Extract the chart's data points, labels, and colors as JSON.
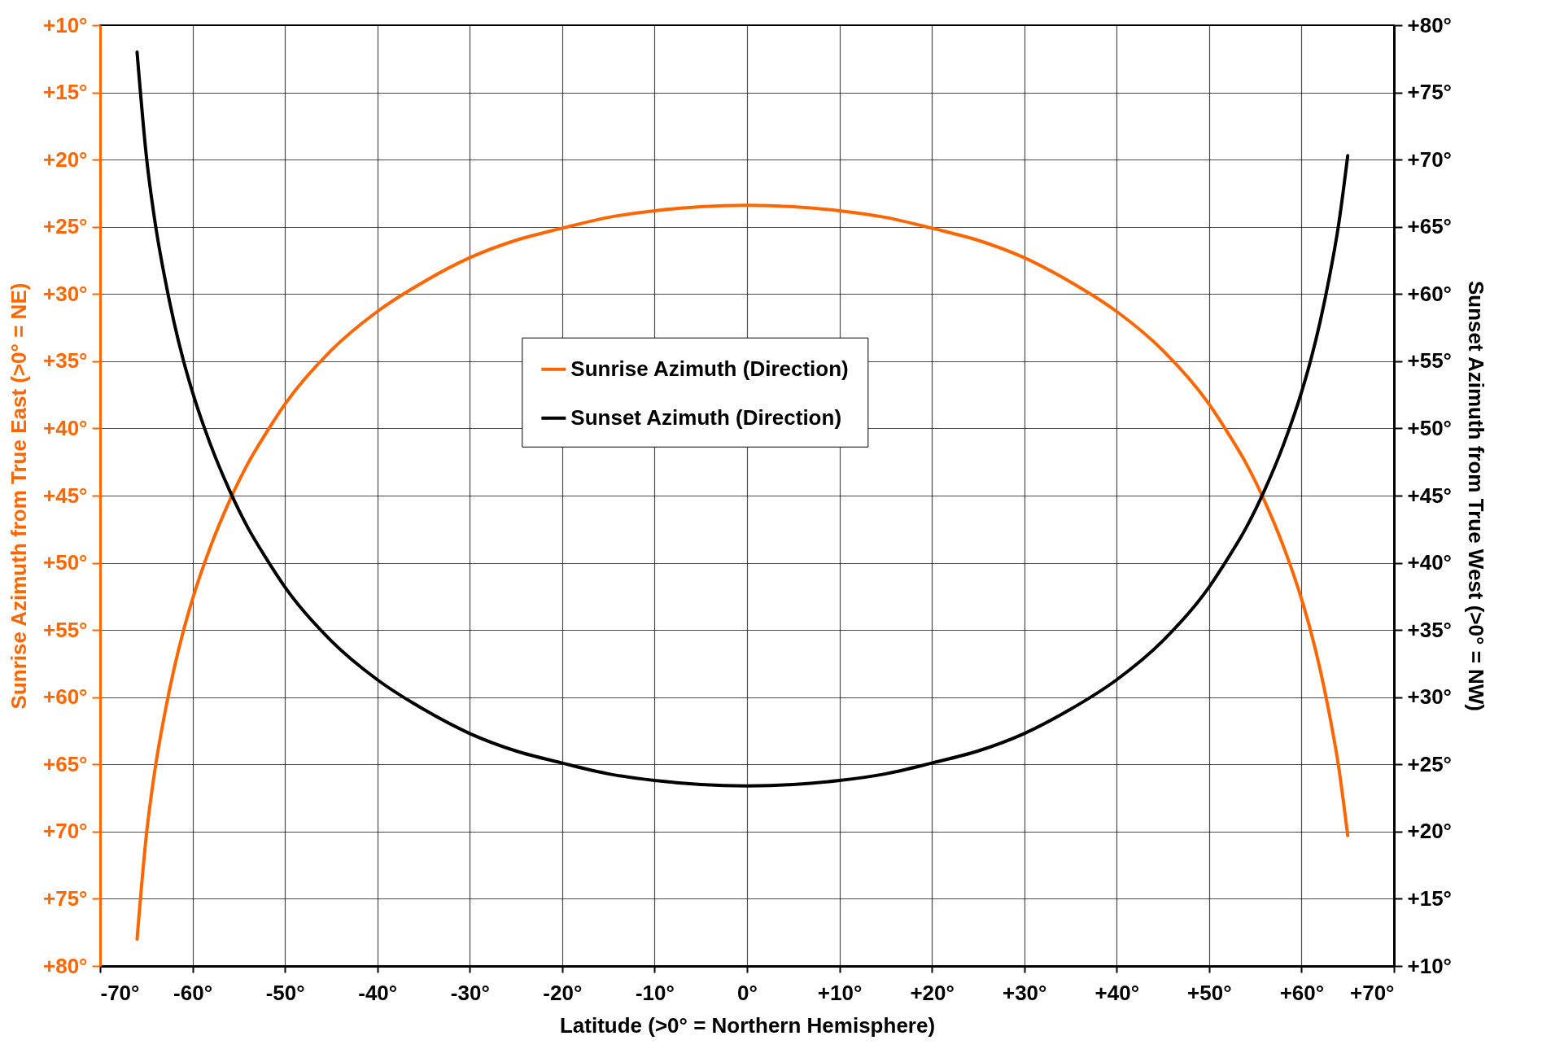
{
  "chart_data": {
    "type": "line",
    "xlabel": "Latitude (>0° = Northern Hemisphere)",
    "ylabel": "Sunrise Azimuth from True East (>0° = NE)",
    "y2label": "Sunset Azimuth from True West (>0° = NW)",
    "x": [
      -66,
      -65,
      -64,
      -63,
      -62,
      -61,
      -60,
      -58,
      -56,
      -54,
      -52,
      -50,
      -45,
      -40,
      -35,
      -30,
      -25,
      -20,
      -15,
      -10,
      -5,
      0,
      5,
      10,
      15,
      20,
      25,
      30,
      35,
      40,
      45,
      50,
      52,
      54,
      56,
      58,
      60,
      61,
      62,
      63,
      64,
      65
    ],
    "series": [
      {
        "name": "Sunrise Azimuth (Direction)",
        "color": "#ff6600",
        "values": [
          78.0,
          70.3,
          65.1,
          61.2,
          57.9,
          55.1,
          52.7,
          48.7,
          45.4,
          42.6,
          40.3,
          38.2,
          34.2,
          31.3,
          29.1,
          27.3,
          26.0,
          25.1,
          24.3,
          23.8,
          23.5,
          23.4,
          23.5,
          23.8,
          24.3,
          25.1,
          26.0,
          27.3,
          29.1,
          31.3,
          34.2,
          38.2,
          40.3,
          42.6,
          45.4,
          48.7,
          52.7,
          55.1,
          57.9,
          61.2,
          65.1,
          70.3
        ]
      },
      {
        "name": "Sunset Azimuth (Direction)",
        "color": "#000000",
        "axis": "y2",
        "values": [
          78.0,
          70.3,
          65.1,
          61.2,
          57.9,
          55.1,
          52.7,
          48.7,
          45.4,
          42.6,
          40.3,
          38.2,
          34.2,
          31.3,
          29.1,
          27.3,
          26.0,
          25.1,
          24.3,
          23.8,
          23.5,
          23.4,
          23.5,
          23.8,
          24.3,
          25.1,
          26.0,
          27.3,
          29.1,
          31.3,
          34.2,
          38.2,
          40.3,
          42.6,
          45.4,
          48.7,
          52.7,
          55.1,
          57.9,
          61.2,
          65.1,
          70.3
        ]
      }
    ],
    "xlim": [
      -70,
      70
    ],
    "xticks": [
      {
        "value": -70,
        "label": "-70°"
      },
      {
        "value": -60,
        "label": "-60°"
      },
      {
        "value": -50,
        "label": "-50°"
      },
      {
        "value": -40,
        "label": "-40°"
      },
      {
        "value": -30,
        "label": "-30°"
      },
      {
        "value": -20,
        "label": "-20°"
      },
      {
        "value": -10,
        "label": "-10°"
      },
      {
        "value": 0,
        "label": "0°"
      },
      {
        "value": 10,
        "label": "+10°"
      },
      {
        "value": 20,
        "label": "+20°"
      },
      {
        "value": 30,
        "label": "+30°"
      },
      {
        "value": 40,
        "label": "+40°"
      },
      {
        "value": 50,
        "label": "+50°"
      },
      {
        "value": 60,
        "label": "+60°"
      },
      {
        "value": 70,
        "label": "+70°"
      }
    ],
    "ylim": [
      80,
      10
    ],
    "yticks": [
      {
        "value": 10,
        "label": "+10°"
      },
      {
        "value": 15,
        "label": "+15°"
      },
      {
        "value": 20,
        "label": "+20°"
      },
      {
        "value": 25,
        "label": "+25°"
      },
      {
        "value": 30,
        "label": "+30°"
      },
      {
        "value": 35,
        "label": "+35°"
      },
      {
        "value": 40,
        "label": "+40°"
      },
      {
        "value": 45,
        "label": "+45°"
      },
      {
        "value": 50,
        "label": "+50°"
      },
      {
        "value": 55,
        "label": "+55°"
      },
      {
        "value": 60,
        "label": "+60°"
      },
      {
        "value": 65,
        "label": "+65°"
      },
      {
        "value": 70,
        "label": "+70°"
      },
      {
        "value": 75,
        "label": "+75°"
      },
      {
        "value": 80,
        "label": "+80°"
      }
    ],
    "y2lim": [
      10,
      80
    ],
    "y2ticks": [
      {
        "value": 10,
        "label": "+10°"
      },
      {
        "value": 15,
        "label": "+15°"
      },
      {
        "value": 20,
        "label": "+20°"
      },
      {
        "value": 25,
        "label": "+25°"
      },
      {
        "value": 30,
        "label": "+30°"
      },
      {
        "value": 35,
        "label": "+35°"
      },
      {
        "value": 40,
        "label": "+40°"
      },
      {
        "value": 45,
        "label": "+45°"
      },
      {
        "value": 50,
        "label": "+50°"
      },
      {
        "value": 55,
        "label": "+55°"
      },
      {
        "value": 60,
        "label": "+60°"
      },
      {
        "value": 65,
        "label": "+65°"
      },
      {
        "value": 70,
        "label": "+70°"
      },
      {
        "value": 75,
        "label": "+75°"
      },
      {
        "value": 80,
        "label": "+80°"
      }
    ],
    "grid": true,
    "legend": "center",
    "line_style": "solid"
  }
}
